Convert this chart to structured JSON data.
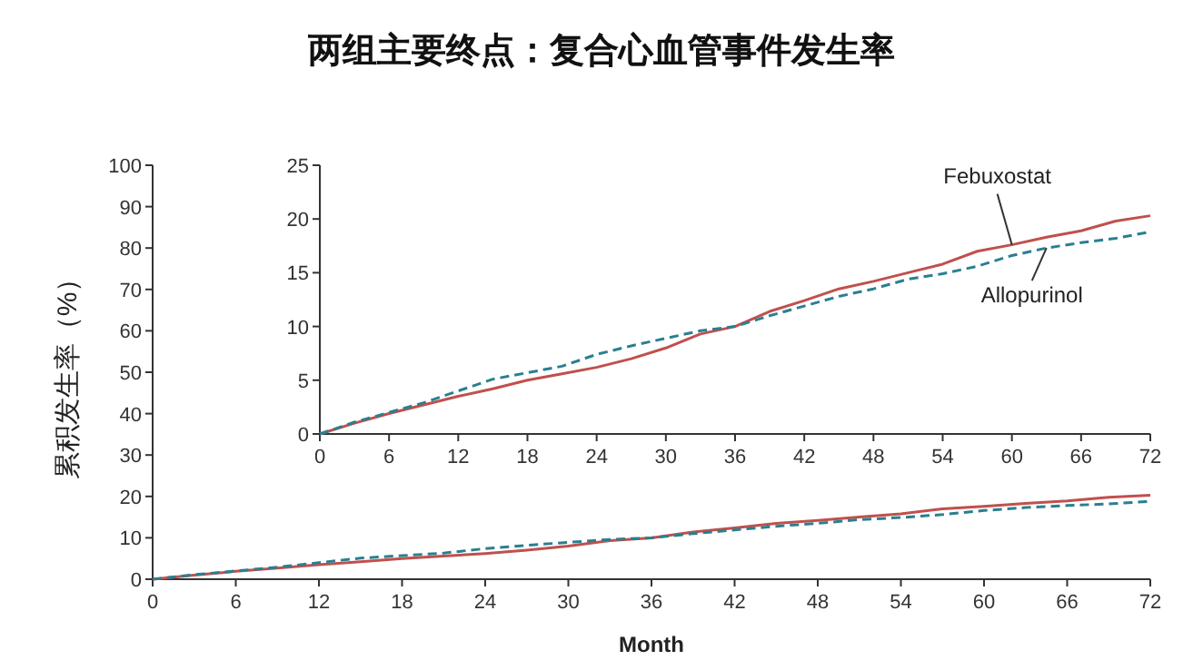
{
  "chart_data": [
    {
      "type": "line",
      "title": "两组主要终点：复合心血管事件发生率",
      "xlabel": "Month",
      "ylabel": "累积发生率（%）",
      "xlim": [
        0,
        72
      ],
      "xticks": [
        0,
        6,
        12,
        18,
        24,
        30,
        36,
        42,
        48,
        54,
        60,
        66,
        72
      ],
      "ylim": [
        0,
        100
      ],
      "yticks": [
        0,
        10,
        20,
        30,
        40,
        50,
        60,
        70,
        80,
        90,
        100
      ],
      "x": [
        0,
        3,
        6,
        9,
        12,
        15,
        18,
        21,
        24,
        27,
        30,
        33,
        36,
        39,
        42,
        45,
        48,
        51,
        54,
        57,
        60,
        63,
        66,
        69,
        72
      ],
      "series": [
        {
          "color": "#c0504d",
          "line_style": "solid",
          "values": [
            0,
            1.0,
            1.9,
            2.7,
            3.5,
            4.2,
            5.0,
            5.6,
            6.2,
            7.0,
            8.0,
            9.3,
            10.0,
            11.4,
            12.4,
            13.5,
            14.2,
            15.0,
            15.8,
            17.0,
            17.6,
            18.3,
            18.9,
            19.8,
            20.3
          ]
        },
        {
          "color": "#2a7f8f",
          "line_style": "dashed",
          "values": [
            0,
            1.1,
            2.0,
            2.9,
            4.0,
            5.1,
            5.7,
            6.3,
            7.4,
            8.2,
            8.9,
            9.6,
            10.0,
            11.0,
            11.9,
            12.8,
            13.5,
            14.4,
            14.9,
            15.6,
            16.6,
            17.3,
            17.8,
            18.2,
            18.8
          ]
        }
      ]
    },
    {
      "type": "line",
      "xlim": [
        0,
        72
      ],
      "xticks": [
        0,
        6,
        12,
        18,
        24,
        30,
        36,
        42,
        48,
        54,
        60,
        66,
        72
      ],
      "ylim": [
        0,
        25
      ],
      "yticks": [
        0,
        5,
        10,
        15,
        20,
        25
      ],
      "x": [
        0,
        3,
        6,
        9,
        12,
        15,
        18,
        21,
        24,
        27,
        30,
        33,
        36,
        39,
        42,
        45,
        48,
        51,
        54,
        57,
        60,
        63,
        66,
        69,
        72
      ],
      "series": [
        {
          "name": "Febuxostat",
          "color": "#c0504d",
          "line_style": "solid",
          "values": [
            0,
            1.0,
            1.9,
            2.7,
            3.5,
            4.2,
            5.0,
            5.6,
            6.2,
            7.0,
            8.0,
            9.3,
            10.0,
            11.4,
            12.4,
            13.5,
            14.2,
            15.0,
            15.8,
            17.0,
            17.6,
            18.3,
            18.9,
            19.8,
            20.3
          ]
        },
        {
          "name": "Allopurinol",
          "color": "#2a7f8f",
          "line_style": "dashed",
          "values": [
            0,
            1.1,
            2.0,
            2.9,
            4.0,
            5.1,
            5.7,
            6.3,
            7.4,
            8.2,
            8.9,
            9.6,
            10.0,
            11.0,
            11.9,
            12.8,
            13.5,
            14.4,
            14.9,
            15.6,
            16.6,
            17.3,
            17.8,
            18.2,
            18.8
          ]
        }
      ]
    }
  ]
}
